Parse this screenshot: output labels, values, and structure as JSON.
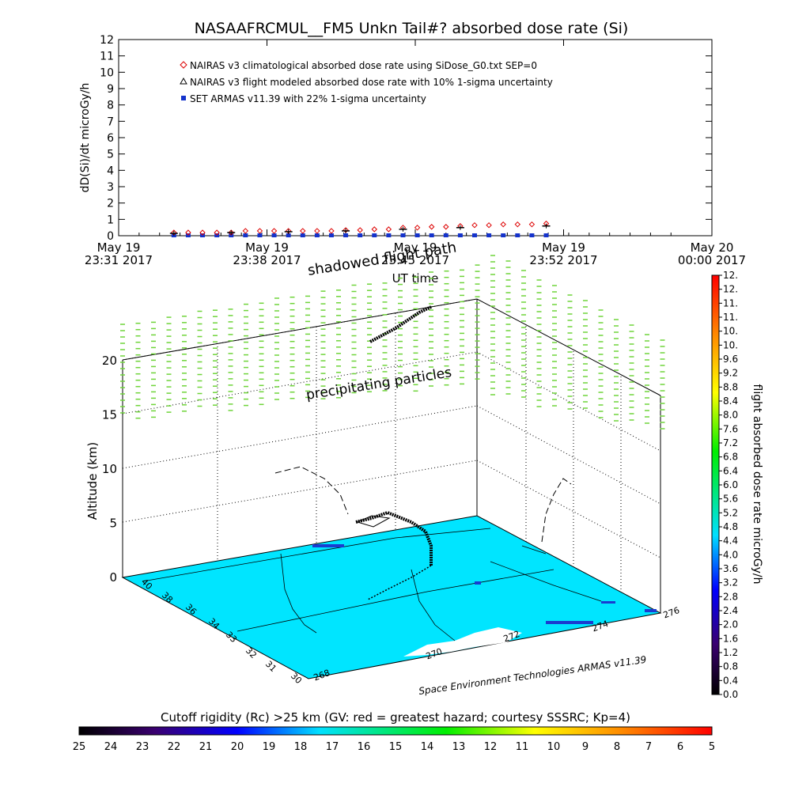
{
  "chart_data": [
    {
      "type": "scatter",
      "title": "NASAAFRCMUL__FM5 Unkn Tail#? absorbed dose rate (Si)",
      "ylabel": "dD(Si)/dt microGy/h",
      "xlabel": "UT time",
      "ylim": [
        0,
        12
      ],
      "yticks": [
        "0",
        "1",
        "2",
        "3",
        "4",
        "5",
        "6",
        "7",
        "8",
        "9",
        "10",
        "11",
        "12"
      ],
      "xticks": [
        {
          "top": "May 19",
          "bottom": "23:31 2017"
        },
        {
          "top": "May 19",
          "bottom": "23:38 2017"
        },
        {
          "top": "May 19",
          "bottom": "23:45 2017"
        },
        {
          "top": "May 19",
          "bottom": "23:52 2017"
        },
        {
          "top": "May 20",
          "bottom": "00:00 2017"
        }
      ],
      "legend": [
        {
          "label": "NAIRAS v3 climatological absorbed dose rate using SiDose_G0.txt SEP=0",
          "marker": "diamond",
          "color": "#dd0000"
        },
        {
          "label": "NAIRAS v3 flight modeled absorbed dose rate with 10% 1-sigma uncertainty",
          "marker": "triangle",
          "color": "#000000"
        },
        {
          "label": "SET ARMAS v11.39 with 22% 1-sigma uncertainty",
          "marker": "square",
          "color": "#1533cc"
        }
      ],
      "series": [
        {
          "name": "NAIRAS v3 climatological absorbed dose rate using SiDose_G0.txt SEP=0",
          "x": [
            2.7,
            3.4,
            4.1,
            4.8,
            5.5,
            6.2,
            6.9,
            7.6,
            8.3,
            9.0,
            9.7,
            10.4,
            11.1,
            11.8,
            12.5,
            13.2,
            13.9,
            14.6,
            15.3,
            16.0,
            16.7,
            17.4,
            18.1,
            18.8,
            19.5,
            20.2,
            20.9
          ],
          "values": [
            0.0,
            0.0,
            0.0,
            0.0,
            0.0,
            0.1,
            0.1,
            0.1,
            0.1,
            0.1,
            0.1,
            0.1,
            0.15,
            0.15,
            0.2,
            0.2,
            0.3,
            0.3,
            0.35,
            0.35,
            0.4,
            0.45,
            0.45,
            0.5,
            0.5,
            0.5,
            0.55
          ]
        },
        {
          "name": "NAIRAS v3 flight modeled absorbed dose rate with 10% 1-sigma uncertainty",
          "x": [
            2.7,
            5.5,
            8.3,
            11.1,
            13.9,
            16.7,
            20.9
          ],
          "values": [
            0.0,
            0.05,
            0.1,
            0.15,
            0.25,
            0.35,
            0.45
          ]
        },
        {
          "name": "SET ARMAS v11.39 with 22% 1-sigma uncertainty",
          "x": [
            2.7,
            3.4,
            4.1,
            4.8,
            5.5,
            6.2,
            6.9,
            7.6,
            8.3,
            9.0,
            9.7,
            10.4,
            11.1,
            11.8,
            12.5,
            13.2,
            13.9,
            14.6,
            15.3,
            16.0,
            16.7,
            17.4,
            18.1,
            18.8,
            19.5,
            20.2,
            20.9
          ],
          "values": [
            0,
            0,
            0,
            0,
            0,
            0,
            0,
            0,
            0,
            0,
            0,
            0,
            0,
            0,
            0,
            0,
            0,
            0,
            0,
            0,
            0,
            0,
            0,
            0,
            0,
            0,
            0
          ]
        }
      ]
    },
    {
      "type": "scatter",
      "ylabel": "Altitude (km)",
      "zticks": [
        "0",
        "5",
        "10",
        "15",
        "20"
      ],
      "lat_ticks": [
        "30",
        "31",
        "32",
        "33",
        "34",
        "36",
        "38",
        "40"
      ],
      "lon_ticks": [
        "268",
        "270",
        "272",
        "274",
        "276"
      ],
      "annotations": [
        "shadowed flight path",
        "precipitating particles",
        "Space Environment Technologies ARMAS v11.39"
      ],
      "colorbar": {
        "label": "flight absorbed dose rate microGy/h",
        "ticks": [
          "0.0",
          "0.4",
          "0.8",
          "1.2",
          "1.6",
          "2.0",
          "2.4",
          "2.8",
          "3.2",
          "3.6",
          "4.0",
          "4.4",
          "4.8",
          "5.2",
          "5.6",
          "6.0",
          "6.4",
          "6.8",
          "7.2",
          "7.6",
          "8.0",
          "8.4",
          "8.8",
          "9.2",
          "9.6",
          "10.",
          "10.",
          "11.",
          "11.",
          "12.",
          "12."
        ]
      }
    },
    {
      "type": "heatmap",
      "title": "Cutoff rigidity (Rc) >25 km (GV: red = greatest hazard; courtesy SSSRC; Kp=4)",
      "ticks": [
        "25",
        "24",
        "23",
        "22",
        "21",
        "20",
        "19",
        "18",
        "17",
        "16",
        "15",
        "14",
        "13",
        "12",
        "11",
        "10",
        "9",
        "8",
        "7",
        "6",
        "5"
      ]
    }
  ]
}
